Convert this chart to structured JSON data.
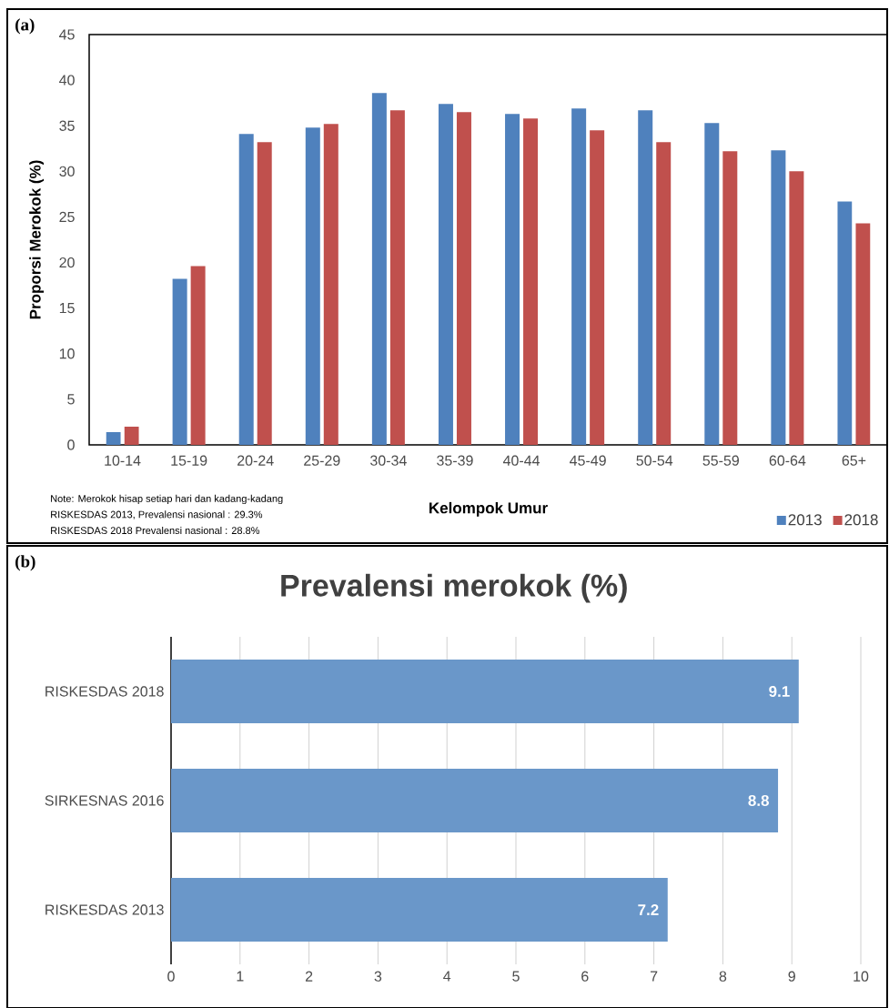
{
  "chart_data": [
    {
      "type": "bar",
      "categories": [
        "10-14",
        "15-19",
        "20-24",
        "25-29",
        "30-34",
        "35-39",
        "40-44",
        "45-49",
        "50-54",
        "55-59",
        "60-64",
        "65+"
      ],
      "series": [
        {
          "name": "2013",
          "color": "#4f81bd",
          "values": [
            1.4,
            18.2,
            34.1,
            34.8,
            38.6,
            37.4,
            36.3,
            36.9,
            36.7,
            35.3,
            32.3,
            26.7
          ]
        },
        {
          "name": "2018",
          "color": "#c0504d",
          "values": [
            2.0,
            19.6,
            33.2,
            35.2,
            36.7,
            36.5,
            35.8,
            34.5,
            33.2,
            32.2,
            30.0,
            24.3
          ]
        }
      ],
      "xlabel": "Kelompok Umur",
      "ylabel": "Proporsi Merokok (%)",
      "ylim": [
        0,
        45
      ],
      "yticks": [
        0,
        5,
        10,
        15,
        20,
        25,
        30,
        35,
        40,
        45
      ],
      "legend": "bottom right",
      "annotations": [
        "(a)",
        "Note: Merokok hisap setiap hari dan kadang-kadang",
        "RISKESDAS 2013, Prevalensi nasional : 29.3%",
        "RISKESDAS 2018 Prevalensi nasional : 28.8%"
      ]
    },
    {
      "type": "bar",
      "orientation": "horizontal",
      "title": "Prevalensi merokok  (%)",
      "categories": [
        "RISKESDAS 2018",
        "SIRKESNAS 2016",
        "RISKESDAS 2013"
      ],
      "values": [
        9.1,
        8.8,
        7.2
      ],
      "color": "#6a97c9",
      "xlim": [
        0,
        10
      ],
      "xticks": [
        0,
        1,
        2,
        3,
        4,
        5,
        6,
        7,
        8,
        9,
        10
      ],
      "grid": "x",
      "data_labels": true,
      "annotations": [
        "(b)"
      ]
    }
  ]
}
